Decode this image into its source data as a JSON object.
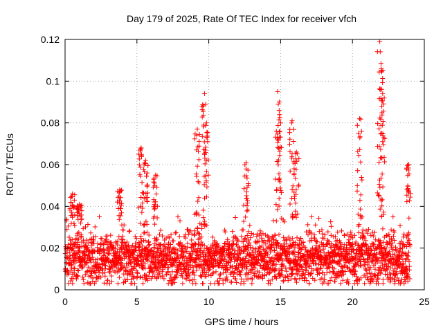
{
  "chart_data": {
    "type": "scatter",
    "title": "Day 179 of 2025, Rate Of TEC Index for receiver vfch",
    "xlabel": "GPS time / hours",
    "ylabel": "ROTI / TECUs",
    "xlim": [
      0,
      25
    ],
    "ylim": [
      0,
      0.12
    ],
    "xticks": [
      0,
      5,
      10,
      15,
      20,
      25
    ],
    "xtick_labels": [
      "0",
      "5",
      "10",
      "15",
      "20",
      "25"
    ],
    "yticks": [
      0,
      0.02,
      0.04,
      0.06,
      0.08,
      0.1,
      0.12
    ],
    "ytick_labels": [
      "0",
      "0.02",
      "0.04",
      "0.06",
      "0.08",
      "0.1",
      "0.12"
    ],
    "grid": true,
    "marker": "+",
    "color": "#ff0000",
    "series": [
      {
        "name": "ROTI",
        "x_range": [
          0,
          24
        ],
        "baseline_range": [
          0.003,
          0.035
        ],
        "typical": 0.015,
        "peaks": [
          {
            "x": 0.5,
            "y": 0.046
          },
          {
            "x": 1.0,
            "y": 0.041
          },
          {
            "x": 3.8,
            "y": 0.048
          },
          {
            "x": 5.3,
            "y": 0.068
          },
          {
            "x": 5.6,
            "y": 0.062
          },
          {
            "x": 6.3,
            "y": 0.055
          },
          {
            "x": 9.2,
            "y": 0.077
          },
          {
            "x": 9.7,
            "y": 0.094
          },
          {
            "x": 9.8,
            "y": 0.089
          },
          {
            "x": 12.6,
            "y": 0.061
          },
          {
            "x": 14.8,
            "y": 0.095
          },
          {
            "x": 14.9,
            "y": 0.086
          },
          {
            "x": 15.8,
            "y": 0.081
          },
          {
            "x": 16.1,
            "y": 0.066
          },
          {
            "x": 20.5,
            "y": 0.082
          },
          {
            "x": 21.9,
            "y": 0.119
          },
          {
            "x": 22.0,
            "y": 0.106
          },
          {
            "x": 22.1,
            "y": 0.094
          },
          {
            "x": 23.9,
            "y": 0.06
          }
        ]
      }
    ]
  }
}
